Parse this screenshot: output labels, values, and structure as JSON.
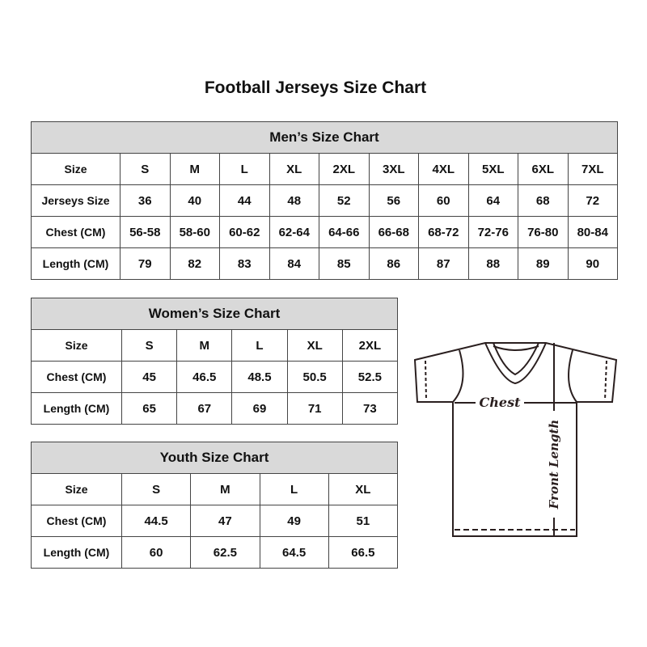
{
  "title": "Football Jerseys Size Chart",
  "men": {
    "heading": "Men’s Size Chart",
    "rows": [
      {
        "label": "Size",
        "values": [
          "S",
          "M",
          "L",
          "XL",
          "2XL",
          "3XL",
          "4XL",
          "5XL",
          "6XL",
          "7XL"
        ]
      },
      {
        "label": "Jerseys Size",
        "values": [
          "36",
          "40",
          "44",
          "48",
          "52",
          "56",
          "60",
          "64",
          "68",
          "72"
        ]
      },
      {
        "label": "Chest (CM)",
        "values": [
          "56-58",
          "58-60",
          "60-62",
          "62-64",
          "64-66",
          "66-68",
          "68-72",
          "72-76",
          "76-80",
          "80-84"
        ]
      },
      {
        "label": "Length (CM)",
        "values": [
          "79",
          "82",
          "83",
          "84",
          "85",
          "86",
          "87",
          "88",
          "89",
          "90"
        ]
      }
    ]
  },
  "women": {
    "heading": "Women’s Size Chart",
    "rows": [
      {
        "label": "Size",
        "values": [
          "S",
          "M",
          "L",
          "XL",
          "2XL"
        ]
      },
      {
        "label": "Chest (CM)",
        "values": [
          "45",
          "46.5",
          "48.5",
          "50.5",
          "52.5"
        ]
      },
      {
        "label": "Length (CM)",
        "values": [
          "65",
          "67",
          "69",
          "71",
          "73"
        ]
      }
    ]
  },
  "youth": {
    "heading": "Youth Size Chart",
    "rows": [
      {
        "label": "Size",
        "values": [
          "S",
          "M",
          "L",
          "XL"
        ]
      },
      {
        "label": "Chest (CM)",
        "values": [
          "44.5",
          "47",
          "49",
          "51"
        ]
      },
      {
        "label": "Length (CM)",
        "values": [
          "60",
          "62.5",
          "64.5",
          "66.5"
        ]
      }
    ]
  },
  "diagram": {
    "chest_label": "Chest",
    "length_label": "Front Length"
  }
}
